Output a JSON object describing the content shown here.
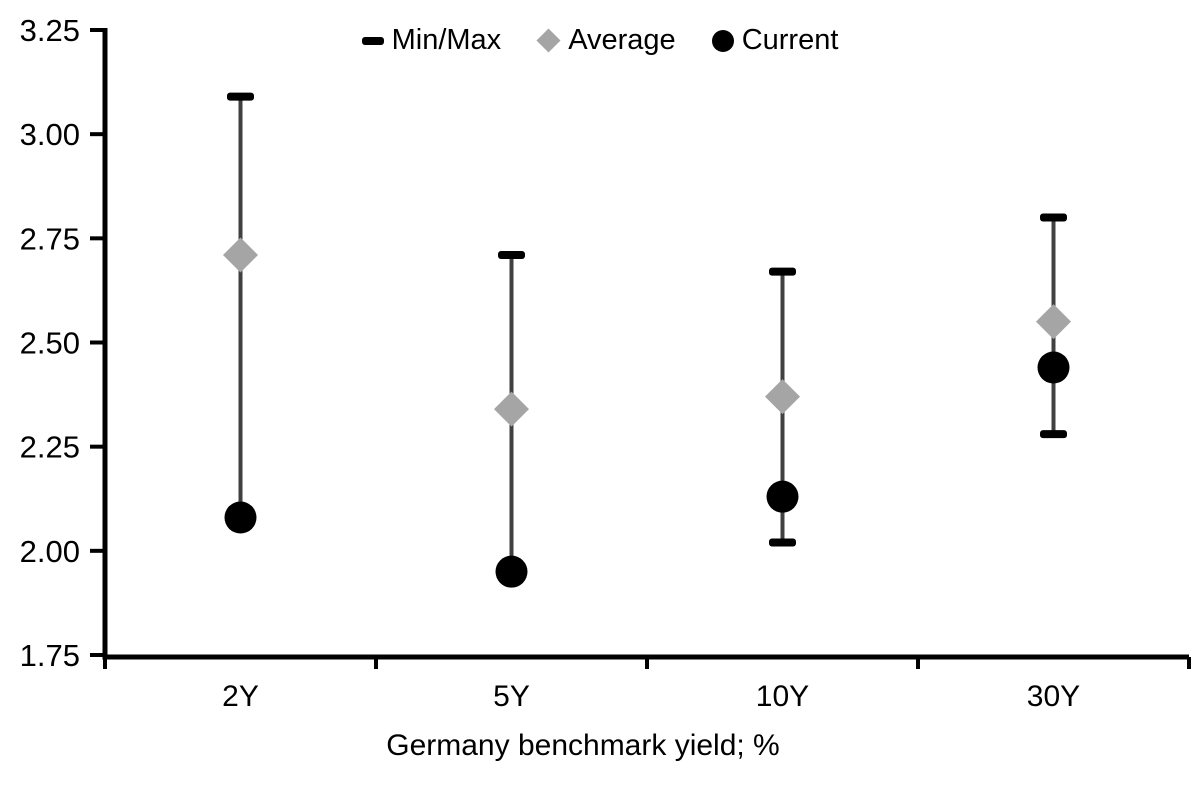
{
  "chart_data": {
    "type": "scatter",
    "title": "",
    "xlabel": "Germany benchmark yield; %",
    "ylabel": "",
    "ylim": [
      1.75,
      3.25
    ],
    "grid": false,
    "legend_position": "top-center",
    "y_ticks": [
      {
        "label": "3.25",
        "value": 3.25
      },
      {
        "label": "3.00",
        "value": 3.0
      },
      {
        "label": "2.75",
        "value": 2.75
      },
      {
        "label": "2.50",
        "value": 2.5
      },
      {
        "label": "2.25",
        "value": 2.25
      },
      {
        "label": "2.00",
        "value": 2.0
      },
      {
        "label": "1.75",
        "value": 1.75
      }
    ],
    "categories": [
      "2Y",
      "5Y",
      "10Y",
      "30Y"
    ],
    "series": [
      {
        "name": "Min/Max",
        "marker": "range-cap",
        "min": [
          2.08,
          1.95,
          2.02,
          2.28
        ],
        "max": [
          3.09,
          2.71,
          2.67,
          2.8
        ]
      },
      {
        "name": "Average",
        "marker": "diamond",
        "values": [
          2.71,
          2.34,
          2.37,
          2.55
        ]
      },
      {
        "name": "Current",
        "marker": "circle",
        "values": [
          2.08,
          1.95,
          2.13,
          2.44
        ]
      }
    ]
  },
  "legend": {
    "items": [
      {
        "label": "Min/Max",
        "glyph": "dash-icon"
      },
      {
        "label": "Average",
        "glyph": "diamond-icon"
      },
      {
        "label": "Current",
        "glyph": "circle-icon"
      }
    ]
  },
  "colors": {
    "axis": "#000000",
    "text": "#000000",
    "range_line": "#404040",
    "range_cap": "#000000",
    "average_marker": "#a5a5a5",
    "current_marker": "#000000",
    "background": "#ffffff"
  }
}
